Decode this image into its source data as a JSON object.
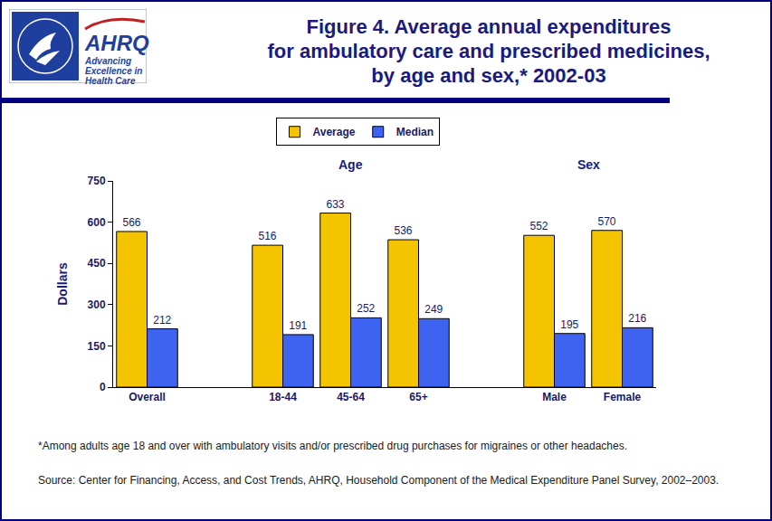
{
  "logo": {
    "name": "AHRQ",
    "tagline": "Advancing Excellence in Health Care"
  },
  "chart_data": {
    "type": "bar",
    "title": "Figure 4. Average annual expenditures\nfor ambulatory care and prescribed medicines,\nby age and sex,* 2002-03",
    "y_label": "Dollars",
    "categories": [
      "Overall",
      null,
      "18-44",
      "45-64",
      "65+",
      null,
      "Male",
      "Female"
    ],
    "series": [
      {
        "name": "Average",
        "color": "#f5c400",
        "values": [
          566,
          null,
          516,
          633,
          536,
          null,
          552,
          570
        ]
      },
      {
        "name": "Median",
        "color": "#3d63f0",
        "values": [
          212,
          null,
          191,
          252,
          249,
          null,
          195,
          216
        ]
      }
    ],
    "group_labels": [
      {
        "text": "Age",
        "categories": [
          "18-44",
          "45-64",
          "65+"
        ]
      },
      {
        "text": "Sex",
        "categories": [
          "Male",
          "Female"
        ]
      }
    ],
    "ylim": [
      0,
      750
    ],
    "yticks": [
      0,
      150,
      300,
      450,
      600,
      750
    ],
    "grid": false,
    "legend": "top",
    "data_labels": true,
    "note": "*Among adults age 18 and over with ambulatory visits and/or prescribed drug purchases for migraines or other headaches.",
    "source": "Source: Center for Financing, Access, and Cost Trends, AHRQ, Household Component of the Medical Expenditure Panel Survey, 2002–2003."
  }
}
